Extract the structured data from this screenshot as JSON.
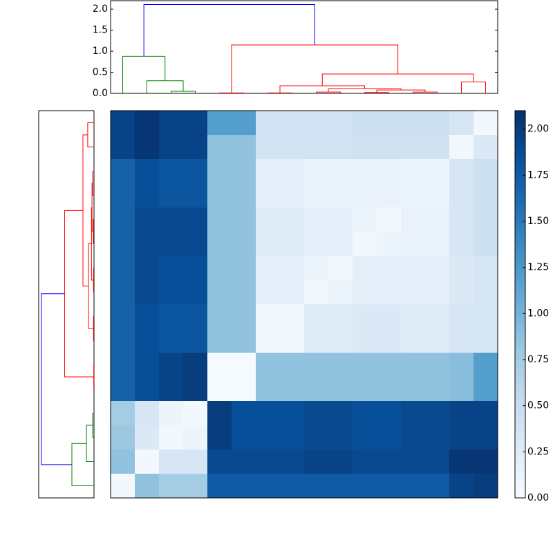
{
  "chart_data": {
    "type": "clustermap",
    "matrix": [
      [
        1.95,
        2.05,
        1.95,
        1.95,
        1.2,
        1.2,
        0.4,
        0.4,
        0.4,
        0.4,
        0.45,
        0.45,
        0.45,
        0.45,
        0.35,
        0.05
      ],
      [
        1.95,
        2.05,
        1.95,
        1.95,
        0.85,
        0.85,
        0.4,
        0.4,
        0.4,
        0.4,
        0.42,
        0.42,
        0.42,
        0.42,
        0.05,
        0.3
      ],
      [
        1.7,
        1.85,
        1.8,
        1.8,
        0.85,
        0.85,
        0.2,
        0.2,
        0.15,
        0.15,
        0.15,
        0.15,
        0.1,
        0.1,
        0.35,
        0.45
      ],
      [
        1.7,
        1.85,
        1.8,
        1.8,
        0.85,
        0.85,
        0.2,
        0.2,
        0.15,
        0.15,
        0.15,
        0.15,
        0.1,
        0.1,
        0.35,
        0.45
      ],
      [
        1.7,
        1.9,
        1.9,
        1.9,
        0.85,
        0.85,
        0.25,
        0.25,
        0.2,
        0.2,
        0.1,
        0.05,
        0.15,
        0.15,
        0.35,
        0.45
      ],
      [
        1.7,
        1.9,
        1.9,
        1.9,
        0.85,
        0.85,
        0.25,
        0.25,
        0.2,
        0.2,
        0.05,
        0.1,
        0.15,
        0.15,
        0.35,
        0.45
      ],
      [
        1.7,
        1.9,
        1.85,
        1.85,
        0.85,
        0.85,
        0.2,
        0.2,
        0.1,
        0.05,
        0.2,
        0.2,
        0.2,
        0.2,
        0.3,
        0.35
      ],
      [
        1.7,
        1.9,
        1.85,
        1.85,
        0.85,
        0.85,
        0.2,
        0.2,
        0.05,
        0.1,
        0.2,
        0.2,
        0.2,
        0.2,
        0.3,
        0.35
      ],
      [
        1.7,
        1.85,
        1.8,
        1.8,
        0.85,
        0.85,
        0.05,
        0.05,
        0.25,
        0.25,
        0.3,
        0.3,
        0.25,
        0.25,
        0.35,
        0.35
      ],
      [
        1.7,
        1.85,
        1.8,
        1.8,
        0.85,
        0.85,
        0.05,
        0.05,
        0.25,
        0.25,
        0.3,
        0.3,
        0.25,
        0.25,
        0.35,
        0.35
      ],
      [
        1.7,
        1.85,
        1.95,
        2.0,
        0.02,
        0.02,
        0.85,
        0.85,
        0.85,
        0.85,
        0.85,
        0.85,
        0.85,
        0.85,
        0.9,
        1.2
      ],
      [
        1.7,
        1.85,
        1.95,
        2.0,
        0.02,
        0.02,
        0.85,
        0.85,
        0.85,
        0.85,
        0.85,
        0.85,
        0.85,
        0.85,
        0.9,
        1.2
      ],
      [
        0.75,
        0.35,
        0.1,
        0.05,
        2.0,
        1.85,
        1.85,
        1.85,
        1.9,
        1.9,
        1.85,
        1.85,
        1.9,
        1.9,
        1.95,
        1.95
      ],
      [
        0.8,
        0.3,
        0.05,
        0.1,
        2.0,
        1.85,
        1.85,
        1.85,
        1.9,
        1.9,
        1.85,
        1.85,
        1.9,
        1.9,
        1.95,
        1.95
      ],
      [
        0.85,
        0.05,
        0.35,
        0.35,
        1.9,
        1.9,
        1.9,
        1.9,
        1.95,
        1.95,
        1.9,
        1.9,
        1.9,
        1.9,
        2.05,
        2.05
      ],
      [
        0.05,
        0.85,
        0.75,
        0.75,
        1.75,
        1.75,
        1.75,
        1.75,
        1.75,
        1.75,
        1.75,
        1.75,
        1.75,
        1.75,
        1.95,
        2.0
      ]
    ],
    "vlim": [
      0,
      2.1
    ],
    "colorscale": [
      "#f7fbff",
      "#deebf7",
      "#c6dbef",
      "#9ecae1",
      "#6baed6",
      "#4292c6",
      "#2171b5",
      "#08519c",
      "#08306b"
    ],
    "colorbar_ticks": [
      {
        "value": 0,
        "label": "0.00"
      },
      {
        "value": 0.25,
        "label": "0.25"
      },
      {
        "value": 0.5,
        "label": "0.50"
      },
      {
        "value": 0.75,
        "label": "0.75"
      },
      {
        "value": 1,
        "label": "1.00"
      },
      {
        "value": 1.25,
        "label": "1.25"
      },
      {
        "value": 1.5,
        "label": "1.50"
      },
      {
        "value": 1.75,
        "label": "1.75"
      },
      {
        "value": 2,
        "label": "2.00"
      }
    ],
    "top_dendrogram": {
      "ylim": [
        0,
        2.2
      ],
      "yticks": [
        {
          "value": 0,
          "label": "0.0"
        },
        {
          "value": 0.5,
          "label": "0.5"
        },
        {
          "value": 1,
          "label": "1.0"
        },
        {
          "value": 1.5,
          "label": "1.5"
        },
        {
          "value": 2,
          "label": "2.0"
        }
      ],
      "links": [
        {
          "left": 2,
          "right": 3,
          "height": 0.05,
          "color": "#008000"
        },
        {
          "left": 1,
          "right": 16,
          "height": 0.3,
          "color": "#008000"
        },
        {
          "left": 0,
          "right": 17,
          "height": 0.88,
          "color": "#008000"
        },
        {
          "left": 4,
          "right": 5,
          "height": 0.01,
          "color": "#ff0000"
        },
        {
          "left": 6,
          "right": 7,
          "height": 0.01,
          "color": "#ff0000"
        },
        {
          "left": 8,
          "right": 9,
          "height": 0.03,
          "color": "#ff0000"
        },
        {
          "left": 10,
          "right": 11,
          "height": 0.02,
          "color": "#ff0000"
        },
        {
          "left": 12,
          "right": 13,
          "height": 0.03,
          "color": "#ff0000"
        },
        {
          "left": 22,
          "right": 23,
          "height": 0.08,
          "color": "#ff0000"
        },
        {
          "left": 21,
          "right": 24,
          "height": 0.11,
          "color": "#ff0000"
        },
        {
          "left": 20,
          "right": 25,
          "height": 0.18,
          "color": "#ff0000"
        },
        {
          "left": 14,
          "right": 15,
          "height": 0.27,
          "color": "#ff0000"
        },
        {
          "left": 26,
          "right": 27,
          "height": 0.46,
          "color": "#ff0000"
        },
        {
          "left": 19,
          "right": 28,
          "height": 1.15,
          "color": "#ff0000"
        },
        {
          "left": 18,
          "right": 29,
          "height": 2.11,
          "color": "#0000ff"
        }
      ]
    },
    "left_dendrogram": {
      "xlim": [
        0,
        2.2
      ],
      "links": [
        {
          "left": 10,
          "right": 11,
          "height": 0.01,
          "color": "#ff0000"
        },
        {
          "left": 0,
          "right": 1,
          "height": 0.25,
          "color": "#ff0000"
        },
        {
          "left": 2,
          "right": 3,
          "height": 0.05,
          "color": "#ff0000"
        },
        {
          "left": 4,
          "right": 5,
          "height": 0.03,
          "color": "#ff0000"
        },
        {
          "left": 6,
          "right": 7,
          "height": 0.02,
          "color": "#ff0000"
        },
        {
          "left": 8,
          "right": 9,
          "height": 0.02,
          "color": "#ff0000"
        },
        {
          "left": 18,
          "right": 19,
          "height": 0.08,
          "color": "#ff0000"
        },
        {
          "left": 22,
          "right": 20,
          "height": 0.1,
          "color": "#ff0000"
        },
        {
          "left": 23,
          "right": 21,
          "height": 0.22,
          "color": "#ff0000"
        },
        {
          "left": 17,
          "right": 24,
          "height": 0.44,
          "color": "#ff0000"
        },
        {
          "left": 25,
          "right": 16,
          "height": 1.17,
          "color": "#ff0000"
        },
        {
          "left": 12,
          "right": 13,
          "height": 0.05,
          "color": "#008000"
        },
        {
          "left": 27,
          "right": 14,
          "height": 0.3,
          "color": "#008000"
        },
        {
          "left": 28,
          "right": 15,
          "height": 0.88,
          "color": "#008000"
        },
        {
          "left": 26,
          "right": 29,
          "height": 2.1,
          "color": "#0000ff"
        }
      ]
    }
  }
}
